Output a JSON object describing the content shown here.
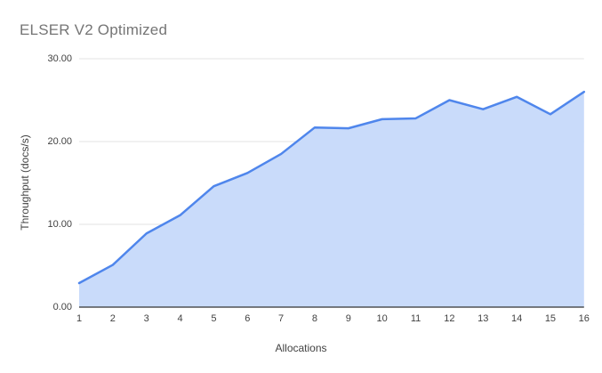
{
  "chart_data": {
    "type": "area",
    "title": "ELSER V2 Optimized",
    "xlabel": "Allocations",
    "ylabel": "Throughput (docs/s)",
    "x": [
      1,
      2,
      3,
      4,
      5,
      6,
      7,
      8,
      9,
      10,
      11,
      12,
      13,
      14,
      15,
      16
    ],
    "values": [
      2.9,
      5.1,
      8.9,
      11.1,
      14.6,
      16.2,
      18.5,
      21.7,
      21.6,
      22.7,
      22.8,
      25.0,
      23.9,
      25.4,
      23.3,
      26.0
    ],
    "ylim": [
      0,
      30
    ],
    "yticks": [
      "0.00",
      "10.00",
      "20.00",
      "30.00"
    ],
    "grid": true,
    "legend": "none",
    "colors": {
      "line": "#4f86ec",
      "fill": "#c9dbfa",
      "grid": "#e3e3e3",
      "axis_line": "#333333",
      "tick_text": "#424242",
      "title_text": "#757575"
    }
  }
}
